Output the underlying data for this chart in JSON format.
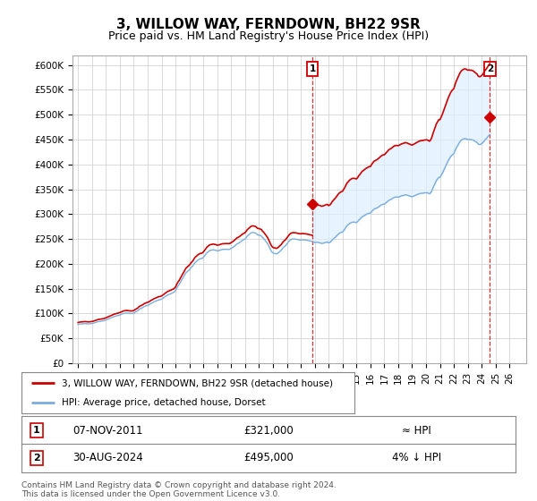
{
  "title": "3, WILLOW WAY, FERNDOWN, BH22 9SR",
  "subtitle": "Price paid vs. HM Land Registry's House Price Index (HPI)",
  "ylabel_ticks": [
    "£0",
    "£50K",
    "£100K",
    "£150K",
    "£200K",
    "£250K",
    "£300K",
    "£350K",
    "£400K",
    "£450K",
    "£500K",
    "£550K",
    "£600K"
  ],
  "ytick_values": [
    0,
    50000,
    100000,
    150000,
    200000,
    250000,
    300000,
    350000,
    400000,
    450000,
    500000,
    550000,
    600000
  ],
  "ylim": [
    0,
    620000
  ],
  "hpi_color": "#7aaddb",
  "price_color": "#cc0000",
  "shade_color": "#ddeeff",
  "legend_entry1": "3, WILLOW WAY, FERNDOWN, BH22 9SR (detached house)",
  "legend_entry2": "HPI: Average price, detached house, Dorset",
  "table_row1_num": "1",
  "table_row1_date": "07-NOV-2011",
  "table_row1_price": "£321,000",
  "table_row1_hpi": "≈ HPI",
  "table_row2_num": "2",
  "table_row2_date": "30-AUG-2024",
  "table_row2_price": "£495,000",
  "table_row2_hpi": "4% ↓ HPI",
  "footer": "Contains HM Land Registry data © Crown copyright and database right 2024.\nThis data is licensed under the Open Government Licence v3.0.",
  "background_color": "#ffffff",
  "grid_color": "#cccccc",
  "hpi_data": [
    [
      1995,
      1,
      78000
    ],
    [
      1995,
      2,
      78500
    ],
    [
      1995,
      3,
      79000
    ],
    [
      1995,
      4,
      79200
    ],
    [
      1995,
      5,
      79400
    ],
    [
      1995,
      6,
      79600
    ],
    [
      1995,
      7,
      79800
    ],
    [
      1995,
      8,
      79600
    ],
    [
      1995,
      9,
      79400
    ],
    [
      1995,
      10,
      79200
    ],
    [
      1995,
      11,
      79400
    ],
    [
      1995,
      12,
      79600
    ],
    [
      1996,
      1,
      80000
    ],
    [
      1996,
      2,
      80500
    ],
    [
      1996,
      3,
      81200
    ],
    [
      1996,
      4,
      82000
    ],
    [
      1996,
      5,
      82800
    ],
    [
      1996,
      6,
      83500
    ],
    [
      1996,
      7,
      84000
    ],
    [
      1996,
      8,
      84300
    ],
    [
      1996,
      9,
      84600
    ],
    [
      1996,
      10,
      85000
    ],
    [
      1996,
      11,
      85500
    ],
    [
      1996,
      12,
      86000
    ],
    [
      1997,
      1,
      87000
    ],
    [
      1997,
      2,
      88000
    ],
    [
      1997,
      3,
      89000
    ],
    [
      1997,
      4,
      90000
    ],
    [
      1997,
      5,
      91000
    ],
    [
      1997,
      6,
      92000
    ],
    [
      1997,
      7,
      93000
    ],
    [
      1997,
      8,
      93800
    ],
    [
      1997,
      9,
      94500
    ],
    [
      1997,
      10,
      95200
    ],
    [
      1997,
      11,
      95800
    ],
    [
      1997,
      12,
      96200
    ],
    [
      1998,
      1,
      97000
    ],
    [
      1998,
      2,
      98000
    ],
    [
      1998,
      3,
      99000
    ],
    [
      1998,
      4,
      100000
    ],
    [
      1998,
      5,
      100500
    ],
    [
      1998,
      6,
      101000
    ],
    [
      1998,
      7,
      101000
    ],
    [
      1998,
      8,
      100800
    ],
    [
      1998,
      9,
      100500
    ],
    [
      1998,
      10,
      100200
    ],
    [
      1998,
      11,
      100100
    ],
    [
      1998,
      12,
      100200
    ],
    [
      1999,
      1,
      101000
    ],
    [
      1999,
      2,
      102500
    ],
    [
      1999,
      3,
      103800
    ],
    [
      1999,
      4,
      105000
    ],
    [
      1999,
      5,
      107000
    ],
    [
      1999,
      6,
      109000
    ],
    [
      1999,
      7,
      110000
    ],
    [
      1999,
      8,
      111000
    ],
    [
      1999,
      9,
      112500
    ],
    [
      1999,
      10,
      114000
    ],
    [
      1999,
      11,
      115000
    ],
    [
      1999,
      12,
      116000
    ],
    [
      2000,
      1,
      116500
    ],
    [
      2000,
      2,
      117500
    ],
    [
      2000,
      3,
      119000
    ],
    [
      2000,
      4,
      120500
    ],
    [
      2000,
      5,
      121500
    ],
    [
      2000,
      6,
      123000
    ],
    [
      2000,
      7,
      124000
    ],
    [
      2000,
      8,
      125000
    ],
    [
      2000,
      9,
      126000
    ],
    [
      2000,
      10,
      127000
    ],
    [
      2000,
      11,
      127500
    ],
    [
      2000,
      12,
      128000
    ],
    [
      2001,
      1,
      129000
    ],
    [
      2001,
      2,
      130500
    ],
    [
      2001,
      3,
      132000
    ],
    [
      2001,
      4,
      134000
    ],
    [
      2001,
      5,
      135500
    ],
    [
      2001,
      6,
      137000
    ],
    [
      2001,
      7,
      138000
    ],
    [
      2001,
      8,
      139000
    ],
    [
      2001,
      9,
      140000
    ],
    [
      2001,
      10,
      141000
    ],
    [
      2001,
      11,
      142000
    ],
    [
      2001,
      12,
      143500
    ],
    [
      2002,
      1,
      146000
    ],
    [
      2002,
      2,
      151000
    ],
    [
      2002,
      3,
      155000
    ],
    [
      2002,
      4,
      158000
    ],
    [
      2002,
      5,
      162000
    ],
    [
      2002,
      6,
      166000
    ],
    [
      2002,
      7,
      170000
    ],
    [
      2002,
      8,
      174000
    ],
    [
      2002,
      9,
      178000
    ],
    [
      2002,
      10,
      182000
    ],
    [
      2002,
      11,
      184000
    ],
    [
      2002,
      12,
      186000
    ],
    [
      2003,
      1,
      188000
    ],
    [
      2003,
      2,
      191000
    ],
    [
      2003,
      3,
      194000
    ],
    [
      2003,
      4,
      196000
    ],
    [
      2003,
      5,
      200000
    ],
    [
      2003,
      6,
      203000
    ],
    [
      2003,
      7,
      205000
    ],
    [
      2003,
      8,
      207000
    ],
    [
      2003,
      9,
      208500
    ],
    [
      2003,
      10,
      210000
    ],
    [
      2003,
      11,
      210500
    ],
    [
      2003,
      12,
      211000
    ],
    [
      2004,
      1,
      213000
    ],
    [
      2004,
      2,
      216000
    ],
    [
      2004,
      3,
      219000
    ],
    [
      2004,
      4,
      222000
    ],
    [
      2004,
      5,
      224000
    ],
    [
      2004,
      6,
      226000
    ],
    [
      2004,
      7,
      227000
    ],
    [
      2004,
      8,
      227500
    ],
    [
      2004,
      9,
      228000
    ],
    [
      2004,
      10,
      228000
    ],
    [
      2004,
      11,
      227500
    ],
    [
      2004,
      12,
      227000
    ],
    [
      2005,
      1,
      226000
    ],
    [
      2005,
      2,
      226500
    ],
    [
      2005,
      3,
      227000
    ],
    [
      2005,
      4,
      228000
    ],
    [
      2005,
      5,
      228500
    ],
    [
      2005,
      6,
      229000
    ],
    [
      2005,
      7,
      229000
    ],
    [
      2005,
      8,
      229200
    ],
    [
      2005,
      9,
      229300
    ],
    [
      2005,
      10,
      229000
    ],
    [
      2005,
      11,
      229200
    ],
    [
      2005,
      12,
      229500
    ],
    [
      2006,
      1,
      231000
    ],
    [
      2006,
      2,
      232500
    ],
    [
      2006,
      3,
      234000
    ],
    [
      2006,
      4,
      236000
    ],
    [
      2006,
      5,
      238000
    ],
    [
      2006,
      6,
      240000
    ],
    [
      2006,
      7,
      241000
    ],
    [
      2006,
      8,
      242500
    ],
    [
      2006,
      9,
      244000
    ],
    [
      2006,
      10,
      246000
    ],
    [
      2006,
      11,
      247500
    ],
    [
      2006,
      12,
      249000
    ],
    [
      2007,
      1,
      250000
    ],
    [
      2007,
      2,
      253000
    ],
    [
      2007,
      3,
      256000
    ],
    [
      2007,
      4,
      258000
    ],
    [
      2007,
      5,
      260000
    ],
    [
      2007,
      6,
      262000
    ],
    [
      2007,
      7,
      263000
    ],
    [
      2007,
      8,
      263000
    ],
    [
      2007,
      9,
      262500
    ],
    [
      2007,
      10,
      262000
    ],
    [
      2007,
      11,
      260000
    ],
    [
      2007,
      12,
      258000
    ],
    [
      2008,
      1,
      258000
    ],
    [
      2008,
      2,
      257000
    ],
    [
      2008,
      3,
      256000
    ],
    [
      2008,
      4,
      253000
    ],
    [
      2008,
      5,
      251000
    ],
    [
      2008,
      6,
      248000
    ],
    [
      2008,
      7,
      245000
    ],
    [
      2008,
      8,
      242000
    ],
    [
      2008,
      9,
      238000
    ],
    [
      2008,
      10,
      233000
    ],
    [
      2008,
      11,
      228000
    ],
    [
      2008,
      12,
      224000
    ],
    [
      2009,
      1,
      222000
    ],
    [
      2009,
      2,
      221000
    ],
    [
      2009,
      3,
      220500
    ],
    [
      2009,
      4,
      220000
    ],
    [
      2009,
      5,
      221000
    ],
    [
      2009,
      6,
      223000
    ],
    [
      2009,
      7,
      225000
    ],
    [
      2009,
      8,
      227000
    ],
    [
      2009,
      9,
      230000
    ],
    [
      2009,
      10,
      233000
    ],
    [
      2009,
      11,
      235000
    ],
    [
      2009,
      12,
      237000
    ],
    [
      2010,
      1,
      240000
    ],
    [
      2010,
      2,
      243000
    ],
    [
      2010,
      3,
      246000
    ],
    [
      2010,
      4,
      248000
    ],
    [
      2010,
      5,
      249500
    ],
    [
      2010,
      6,
      250000
    ],
    [
      2010,
      7,
      250000
    ],
    [
      2010,
      8,
      250000
    ],
    [
      2010,
      9,
      249500
    ],
    [
      2010,
      10,
      249000
    ],
    [
      2010,
      11,
      248500
    ],
    [
      2010,
      12,
      248000
    ],
    [
      2011,
      1,
      248000
    ],
    [
      2011,
      2,
      248200
    ],
    [
      2011,
      3,
      248500
    ],
    [
      2011,
      4,
      248000
    ],
    [
      2011,
      5,
      248000
    ],
    [
      2011,
      6,
      247500
    ],
    [
      2011,
      7,
      247000
    ],
    [
      2011,
      8,
      246500
    ],
    [
      2011,
      9,
      246000
    ],
    [
      2011,
      10,
      245500
    ],
    [
      2011,
      11,
      245000
    ],
    [
      2011,
      12,
      244000
    ],
    [
      2012,
      1,
      243000
    ],
    [
      2012,
      2,
      243000
    ],
    [
      2012,
      3,
      243500
    ],
    [
      2012,
      4,
      243000
    ],
    [
      2012,
      5,
      242500
    ],
    [
      2012,
      6,
      242000
    ],
    [
      2012,
      7,
      241000
    ],
    [
      2012,
      8,
      241500
    ],
    [
      2012,
      9,
      242000
    ],
    [
      2012,
      10,
      243000
    ],
    [
      2012,
      11,
      243500
    ],
    [
      2012,
      12,
      244000
    ],
    [
      2013,
      1,
      242000
    ],
    [
      2013,
      2,
      243000
    ],
    [
      2013,
      3,
      245000
    ],
    [
      2013,
      4,
      248000
    ],
    [
      2013,
      5,
      250000
    ],
    [
      2013,
      6,
      252000
    ],
    [
      2013,
      7,
      254000
    ],
    [
      2013,
      8,
      256500
    ],
    [
      2013,
      9,
      259000
    ],
    [
      2013,
      10,
      261000
    ],
    [
      2013,
      11,
      262500
    ],
    [
      2013,
      12,
      263500
    ],
    [
      2014,
      1,
      264000
    ],
    [
      2014,
      2,
      267000
    ],
    [
      2014,
      3,
      270000
    ],
    [
      2014,
      4,
      274000
    ],
    [
      2014,
      5,
      277000
    ],
    [
      2014,
      6,
      279000
    ],
    [
      2014,
      7,
      281000
    ],
    [
      2014,
      8,
      282500
    ],
    [
      2014,
      9,
      283500
    ],
    [
      2014,
      10,
      284000
    ],
    [
      2014,
      11,
      284000
    ],
    [
      2014,
      12,
      283500
    ],
    [
      2015,
      1,
      283000
    ],
    [
      2015,
      2,
      285000
    ],
    [
      2015,
      3,
      288000
    ],
    [
      2015,
      4,
      290000
    ],
    [
      2015,
      5,
      292500
    ],
    [
      2015,
      6,
      295000
    ],
    [
      2015,
      7,
      296000
    ],
    [
      2015,
      8,
      297500
    ],
    [
      2015,
      9,
      299000
    ],
    [
      2015,
      10,
      300000
    ],
    [
      2015,
      11,
      301000
    ],
    [
      2015,
      12,
      302000
    ],
    [
      2016,
      1,
      302000
    ],
    [
      2016,
      2,
      305000
    ],
    [
      2016,
      3,
      307500
    ],
    [
      2016,
      4,
      310000
    ],
    [
      2016,
      5,
      311000
    ],
    [
      2016,
      6,
      312000
    ],
    [
      2016,
      7,
      313000
    ],
    [
      2016,
      8,
      314500
    ],
    [
      2016,
      9,
      316000
    ],
    [
      2016,
      10,
      318000
    ],
    [
      2016,
      11,
      319000
    ],
    [
      2016,
      12,
      320000
    ],
    [
      2017,
      1,
      320000
    ],
    [
      2017,
      2,
      322000
    ],
    [
      2017,
      3,
      324000
    ],
    [
      2017,
      4,
      326000
    ],
    [
      2017,
      5,
      328000
    ],
    [
      2017,
      6,
      329000
    ],
    [
      2017,
      7,
      330000
    ],
    [
      2017,
      8,
      331500
    ],
    [
      2017,
      9,
      333000
    ],
    [
      2017,
      10,
      334000
    ],
    [
      2017,
      11,
      334500
    ],
    [
      2017,
      12,
      334500
    ],
    [
      2018,
      1,
      334000
    ],
    [
      2018,
      2,
      335000
    ],
    [
      2018,
      3,
      336000
    ],
    [
      2018,
      4,
      337000
    ],
    [
      2018,
      5,
      337500
    ],
    [
      2018,
      6,
      338000
    ],
    [
      2018,
      7,
      339000
    ],
    [
      2018,
      8,
      338500
    ],
    [
      2018,
      9,
      338000
    ],
    [
      2018,
      10,
      337000
    ],
    [
      2018,
      11,
      336500
    ],
    [
      2018,
      12,
      335500
    ],
    [
      2019,
      1,
      335000
    ],
    [
      2019,
      2,
      336000
    ],
    [
      2019,
      3,
      337000
    ],
    [
      2019,
      4,
      338000
    ],
    [
      2019,
      5,
      339000
    ],
    [
      2019,
      6,
      340000
    ],
    [
      2019,
      7,
      341000
    ],
    [
      2019,
      8,
      341500
    ],
    [
      2019,
      9,
      342000
    ],
    [
      2019,
      10,
      342000
    ],
    [
      2019,
      11,
      342500
    ],
    [
      2019,
      12,
      343000
    ],
    [
      2020,
      1,
      343000
    ],
    [
      2020,
      2,
      343000
    ],
    [
      2020,
      3,
      342000
    ],
    [
      2020,
      4,
      341000
    ],
    [
      2020,
      5,
      343000
    ],
    [
      2020,
      6,
      347000
    ],
    [
      2020,
      7,
      353000
    ],
    [
      2020,
      8,
      358000
    ],
    [
      2020,
      9,
      363000
    ],
    [
      2020,
      10,
      368000
    ],
    [
      2020,
      11,
      371000
    ],
    [
      2020,
      12,
      374000
    ],
    [
      2021,
      1,
      374000
    ],
    [
      2021,
      2,
      378000
    ],
    [
      2021,
      3,
      382000
    ],
    [
      2021,
      4,
      387000
    ],
    [
      2021,
      5,
      392000
    ],
    [
      2021,
      6,
      397000
    ],
    [
      2021,
      7,
      402000
    ],
    [
      2021,
      8,
      407000
    ],
    [
      2021,
      9,
      411000
    ],
    [
      2021,
      10,
      415000
    ],
    [
      2021,
      11,
      418000
    ],
    [
      2021,
      12,
      420000
    ],
    [
      2022,
      1,
      422000
    ],
    [
      2022,
      2,
      428000
    ],
    [
      2022,
      3,
      433000
    ],
    [
      2022,
      4,
      437000
    ],
    [
      2022,
      5,
      441000
    ],
    [
      2022,
      6,
      445000
    ],
    [
      2022,
      7,
      448000
    ],
    [
      2022,
      8,
      450000
    ],
    [
      2022,
      9,
      451000
    ],
    [
      2022,
      10,
      452000
    ],
    [
      2022,
      11,
      452000
    ],
    [
      2022,
      12,
      451000
    ],
    [
      2023,
      1,
      450000
    ],
    [
      2023,
      2,
      450500
    ],
    [
      2023,
      3,
      450000
    ],
    [
      2023,
      4,
      450000
    ],
    [
      2023,
      5,
      449500
    ],
    [
      2023,
      6,
      448500
    ],
    [
      2023,
      7,
      447000
    ],
    [
      2023,
      8,
      445500
    ],
    [
      2023,
      9,
      444000
    ],
    [
      2023,
      10,
      441000
    ],
    [
      2023,
      11,
      440000
    ],
    [
      2023,
      12,
      440500
    ],
    [
      2024,
      1,
      442000
    ],
    [
      2024,
      2,
      444000
    ],
    [
      2024,
      3,
      447000
    ],
    [
      2024,
      4,
      450000
    ],
    [
      2024,
      5,
      452000
    ],
    [
      2024,
      6,
      455000
    ],
    [
      2024,
      7,
      458000
    ],
    [
      2024,
      8,
      460000
    ]
  ],
  "transactions": [
    {
      "year": 1995,
      "month": 3,
      "price": 83000
    },
    {
      "year": 2011,
      "month": 11,
      "price": 321000
    },
    {
      "year": 2024,
      "month": 8,
      "price": 495000
    }
  ]
}
